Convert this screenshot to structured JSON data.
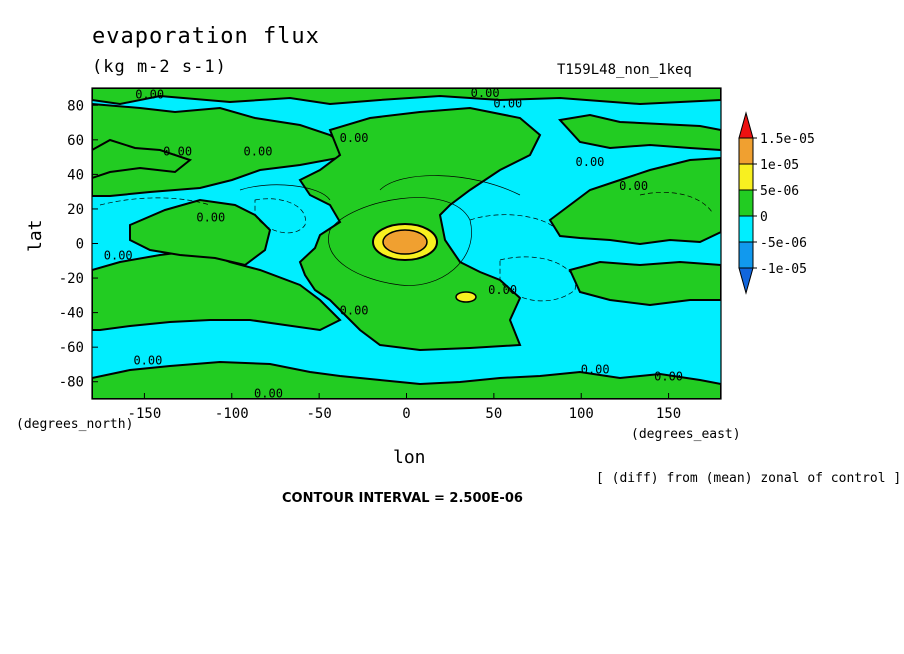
{
  "header": {
    "title": "evaporation flux",
    "units": "(kg m-2 s-1)",
    "run_label": "T159L48_non_1keq"
  },
  "footer": {
    "diff_note": "[ (diff) from (mean) zonal of control ]",
    "contour_interval": "CONTOUR INTERVAL = 2.500E-06"
  },
  "chart_data": {
    "type": "heatmap",
    "title": "evaporation flux",
    "subtitle": "(kg m-2 s-1)",
    "xlabel": "lon",
    "ylabel": "lat",
    "x_units_label": "(degrees_east)",
    "y_units_label": "(degrees_north)",
    "xlim": [
      -180,
      180
    ],
    "ylim": [
      -90,
      90
    ],
    "x_ticks": [
      -150,
      -100,
      -50,
      0,
      50,
      100,
      150
    ],
    "y_ticks": [
      80,
      60,
      40,
      20,
      0,
      -20,
      -40,
      -60,
      -80
    ],
    "x_tick_labels": [
      "-150",
      "-100",
      "-50",
      "0",
      "50",
      "100",
      "150"
    ],
    "y_tick_labels": [
      "80",
      "60",
      "40",
      "20",
      "0",
      "-20",
      "-40",
      "-60",
      "-80"
    ],
    "contour_interval": 2.5e-06,
    "colorbar": {
      "labels": [
        "1.5e-05",
        "1e-05",
        "5e-06",
        "0",
        "-5e-06",
        "-1e-05"
      ],
      "levels": [
        {
          "range": [
            1.5e-05,
            null
          ],
          "color": "#ee1111"
        },
        {
          "range": [
            1e-05,
            1.5e-05
          ],
          "color": "#f0a030"
        },
        {
          "range": [
            5e-06,
            1e-05
          ],
          "color": "#f8f020"
        },
        {
          "range": [
            0,
            5e-06
          ],
          "color": "#22cc22"
        },
        {
          "range": [
            -5e-06,
            0
          ],
          "color": "#00eeff"
        },
        {
          "range": [
            -1e-05,
            -5e-06
          ],
          "color": "#1199ee"
        },
        {
          "range": [
            null,
            -1e-05
          ],
          "color": "#1166dd"
        }
      ]
    },
    "contour_labels": [
      {
        "text": "0.00",
        "lon": -147,
        "lat": 85
      },
      {
        "text": "0.00",
        "lon": -131,
        "lat": 52
      },
      {
        "text": "0.00",
        "lon": -85,
        "lat": 52
      },
      {
        "text": "0.00",
        "lon": -112,
        "lat": 14
      },
      {
        "text": "0.00",
        "lon": -165,
        "lat": -8
      },
      {
        "text": "0.00",
        "lon": -30,
        "lat": 60
      },
      {
        "text": "0.00",
        "lon": 45,
        "lat": 86
      },
      {
        "text": "0.00",
        "lon": 58,
        "lat": 80
      },
      {
        "text": "0.00",
        "lon": 105,
        "lat": 46
      },
      {
        "text": "0.00",
        "lon": 130,
        "lat": 32
      },
      {
        "text": "0.00",
        "lon": 55,
        "lat": -28
      },
      {
        "text": "0.00",
        "lon": -30,
        "lat": -40
      },
      {
        "text": "0.00",
        "lon": -148,
        "lat": -69
      },
      {
        "text": "0.00",
        "lon": 108,
        "lat": -74
      },
      {
        "text": "0.00",
        "lon": 150,
        "lat": -78
      },
      {
        "text": "0.00",
        "lon": -79,
        "lat": -88
      }
    ],
    "regions": [
      {
        "level": "0 to 5e-06",
        "desc": "central positive band along 0 lon"
      },
      {
        "level": "1e-05 to 1.5e-05",
        "center": [
          15,
          2
        ]
      },
      {
        "level": "5e-06 to 1e-05",
        "center": [
          35,
          -31
        ]
      }
    ]
  }
}
